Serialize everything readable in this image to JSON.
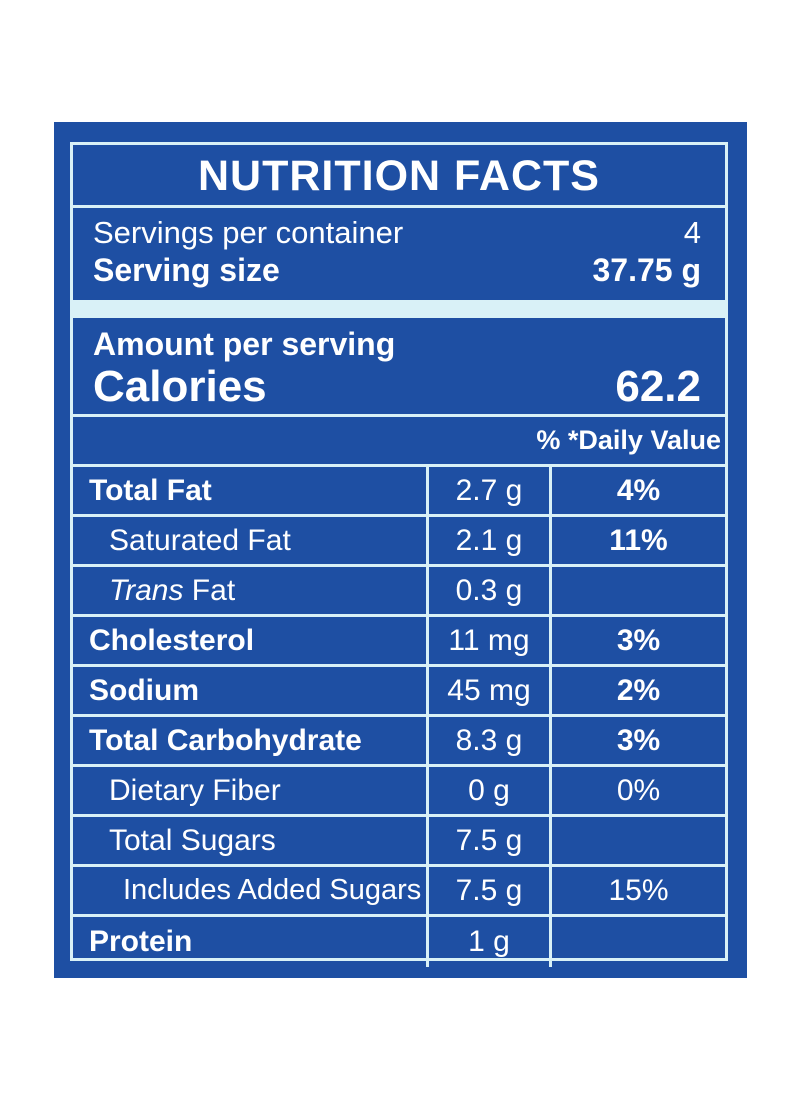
{
  "label": {
    "title": "NUTRITION FACTS",
    "servings_label": "Servings per container",
    "servings_value": "4",
    "serving_size_label": "Serving size",
    "serving_size_value": "37.75 g",
    "amount_label": "Amount per serving",
    "calories_label": "Calories",
    "calories_value": "62.2",
    "daily_value_header": "% *Daily Value",
    "trans_fat_prefix": "Trans",
    "trans_fat_suffix": " Fat",
    "rows": [
      {
        "name": "Total Fat",
        "amount": "2.7 g",
        "dv": "4%"
      },
      {
        "name": "Saturated Fat",
        "amount": "2.1 g",
        "dv": "11%"
      },
      {
        "name": "Trans Fat",
        "amount": "0.3 g",
        "dv": ""
      },
      {
        "name": "Cholesterol",
        "amount": "11 mg",
        "dv": "3%"
      },
      {
        "name": "Sodium",
        "amount": "45 mg",
        "dv": "2%"
      },
      {
        "name": "Total Carbohydrate",
        "amount": "8.3 g",
        "dv": "3%"
      },
      {
        "name": "Dietary Fiber",
        "amount": "0 g",
        "dv": "0%"
      },
      {
        "name": "Total Sugars",
        "amount": "7.5 g",
        "dv": ""
      },
      {
        "name": "Includes Added Sugars",
        "amount": "7.5 g",
        "dv": "15%"
      },
      {
        "name": "Protein",
        "amount": "1 g",
        "dv": ""
      }
    ]
  },
  "colors": {
    "panel": "#1e4fa3",
    "rule": "#d9f1f7",
    "text": "#ffffff"
  }
}
